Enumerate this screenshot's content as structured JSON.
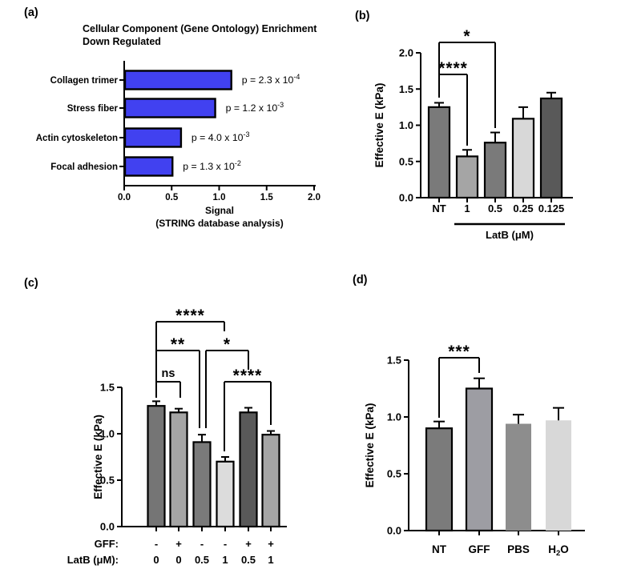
{
  "chart_data": [
    {
      "panel_label": "(a)",
      "type": "bar",
      "orientation": "horizontal",
      "title_lines": [
        "Cellular Component (Gene Ontology) Enrichment",
        "Down Regulated"
      ],
      "categories": [
        "Collagen trimer",
        "Stress fiber",
        "Actin cytoskeleton",
        "Focal adhesion"
      ],
      "values": [
        1.12,
        0.95,
        0.59,
        0.5
      ],
      "p_labels": [
        {
          "base": "p = 2.3 x 10",
          "exp": "-4"
        },
        {
          "base": "p = 1.2 x 10",
          "exp": "-3"
        },
        {
          "base": "p = 4.0 x 10",
          "exp": "-3"
        },
        {
          "base": "p = 1.3 x 10",
          "exp": "-2"
        }
      ],
      "xlabel_lines": [
        "Signal",
        "(STRING database analysis)"
      ],
      "xticks": [
        0,
        0.5,
        1,
        1.5,
        2
      ],
      "xtick_labels": [
        "0.0",
        "0.5",
        "1.0",
        "1.5",
        "2.0"
      ],
      "xlim": [
        0,
        2
      ],
      "bar_color": "#4141f0",
      "bar_border_color": "#000000"
    },
    {
      "panel_label": "(b)",
      "type": "bar",
      "orientation": "vertical",
      "ylabel": "Effective E (kPa)",
      "categories": [
        "NT",
        "1",
        "0.5",
        "0.25",
        "0.125"
      ],
      "values": [
        1.25,
        0.57,
        0.76,
        1.09,
        1.37
      ],
      "errors": [
        0.06,
        0.09,
        0.14,
        0.16,
        0.08
      ],
      "bar_colors": [
        "#7a7a7a",
        "#a5a5a5",
        "#7a7a7a",
        "#d8d8d8",
        "#595959"
      ],
      "bar_borders": [
        true,
        true,
        true,
        true,
        true
      ],
      "yticks": [
        0,
        0.5,
        1,
        1.5,
        2
      ],
      "ytick_labels": [
        "0.0",
        "0.5",
        "1.0",
        "1.5",
        "2.0"
      ],
      "ylim": [
        0,
        2
      ],
      "group_label": "LatB (μM)",
      "group_span_categories": [
        "1",
        "0.125"
      ],
      "significance": [
        {
          "label": "*",
          "from": "NT",
          "to": "0.5"
        },
        {
          "label": "****",
          "from": "NT",
          "to": "1"
        }
      ]
    },
    {
      "panel_label": "(c)",
      "type": "bar",
      "orientation": "vertical",
      "ylabel": "Effective E (kPa)",
      "row_labels": [
        "GFF:",
        "LatB (μM):"
      ],
      "rows": [
        [
          "-",
          "+",
          "-",
          "-",
          "+",
          "+"
        ],
        [
          "0",
          "0",
          "0.5",
          "1",
          "0.5",
          "1"
        ]
      ],
      "values": [
        1.3,
        1.23,
        0.91,
        0.7,
        1.23,
        0.99
      ],
      "errors": [
        0.05,
        0.04,
        0.08,
        0.05,
        0.05,
        0.04
      ],
      "bar_colors": [
        "#757575",
        "#a5a5a5",
        "#7a7a7a",
        "#dcdcdc",
        "#595959",
        "#a5a5a5"
      ],
      "bar_borders": [
        true,
        true,
        true,
        true,
        true,
        true
      ],
      "yticks": [
        0,
        0.5,
        1,
        1.5
      ],
      "ytick_labels": [
        "0.0",
        "0.5",
        "1.0",
        "1.5"
      ],
      "ylim": [
        0,
        1.5
      ],
      "significance": [
        {
          "label": "****",
          "from": 0,
          "to": 3
        },
        {
          "label": "**",
          "from": 0,
          "to": 2
        },
        {
          "label": "*",
          "from": 2,
          "to": 4
        },
        {
          "label": "ns",
          "from": 0,
          "to": 1
        },
        {
          "label": "****",
          "from": 3,
          "to": 5
        }
      ]
    },
    {
      "panel_label": "(d)",
      "type": "bar",
      "orientation": "vertical",
      "ylabel": "Effective E (kPa)",
      "categories": [
        "NT",
        "GFF",
        "PBS",
        "H2O"
      ],
      "values": [
        0.9,
        1.25,
        0.94,
        0.97
      ],
      "errors": [
        0.06,
        0.09,
        0.08,
        0.11
      ],
      "bar_colors": [
        "#7b7b7b",
        "#9d9da3",
        "#8d8d8d",
        "#d8d8d8"
      ],
      "bar_borders": [
        true,
        true,
        false,
        false
      ],
      "yticks": [
        0,
        0.5,
        1,
        1.5
      ],
      "ytick_labels": [
        "0.0",
        "0.5",
        "1.0",
        "1.5"
      ],
      "ylim": [
        0,
        1.5
      ],
      "significance": [
        {
          "label": "***",
          "from": "NT",
          "to": "GFF"
        }
      ]
    }
  ]
}
